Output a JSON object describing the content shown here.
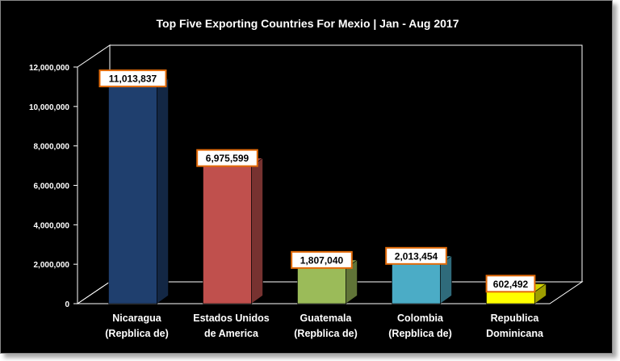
{
  "chart_data": {
    "type": "bar",
    "title": "Top Five Exporting Countries  For Mexio | Jan - Aug 2017",
    "categories": [
      [
        "Nicaragua",
        "(Repblica de)"
      ],
      [
        "Estados  Unidos",
        "de America"
      ],
      [
        "Guatemala",
        "(Repblica de)"
      ],
      [
        "Colombia",
        "(Repblica de)"
      ],
      [
        "Republica",
        "Dominicana"
      ]
    ],
    "values": [
      11013837,
      6975599,
      1807040,
      2013454,
      602492
    ],
    "data_labels": [
      "11,013,837",
      "6,975,599",
      "1,807,040",
      "2,013,454",
      "602,492"
    ],
    "bar_colors": [
      "#1f3f6e",
      "#c0504d",
      "#9bbb59",
      "#4bacc6",
      "#ffff00"
    ],
    "ylim": [
      0,
      12000000
    ],
    "yticks": [
      0,
      2000000,
      4000000,
      6000000,
      8000000,
      10000000,
      12000000
    ],
    "ytick_labels": [
      "0",
      "2,000,000",
      "4,000,000",
      "6,000,000",
      "8,000,000",
      "10,000,000",
      "12,000,000"
    ],
    "xlabel": "",
    "ylabel": "",
    "grid": false,
    "legend": "none",
    "style": "3d-column",
    "background": "#000000",
    "label_border_color": "#e46c0a"
  }
}
